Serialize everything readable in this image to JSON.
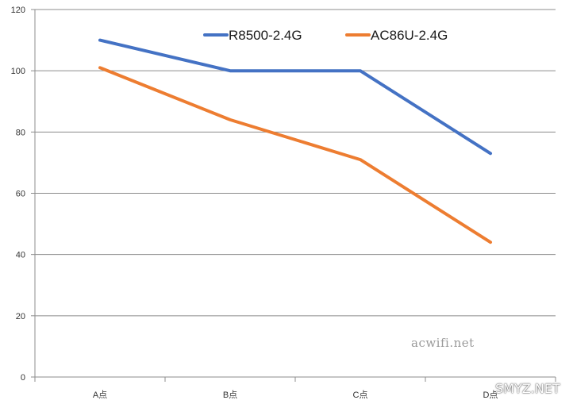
{
  "chart_data": {
    "type": "line",
    "title": "",
    "xlabel": "",
    "ylabel": "",
    "categories": [
      "A点",
      "B点",
      "C点",
      "D点"
    ],
    "ylim": [
      0,
      120
    ],
    "yticks": [
      0,
      20,
      40,
      60,
      80,
      100,
      120
    ],
    "grid": "horizontal",
    "legend_position": "top",
    "series": [
      {
        "name": "R8500-2.4G",
        "color": "#4472C4",
        "values": [
          110,
          100,
          100,
          73
        ]
      },
      {
        "name": "AC86U-2.4G",
        "color": "#ED7D31",
        "values": [
          101,
          84,
          71,
          44
        ]
      }
    ]
  },
  "watermark": "acwifi.net",
  "brand": "SMYZ.NET"
}
